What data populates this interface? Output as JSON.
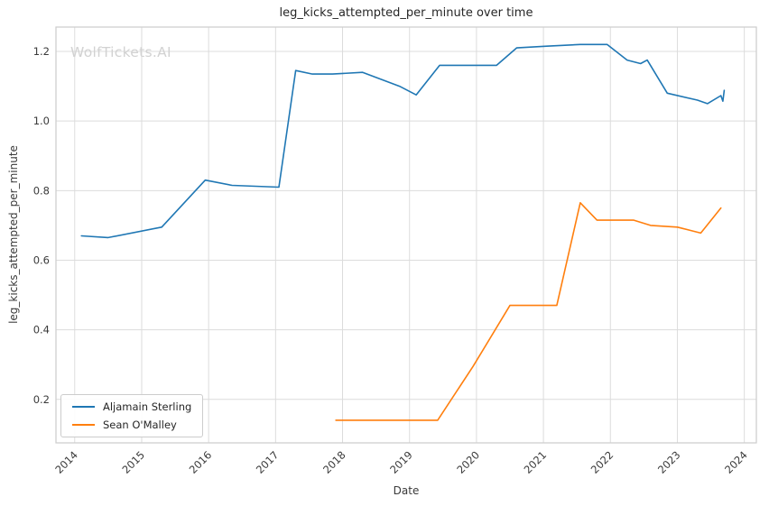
{
  "watermark": "WolfTickets.AI",
  "chart_data": {
    "type": "line",
    "title": "leg_kicks_attempted_per_minute over time",
    "xlabel": "Date",
    "ylabel": "leg_kicks_attempted_per_minute",
    "xlim": [
      2013.72,
      2024.18
    ],
    "ylim": [
      0.075,
      1.27
    ],
    "x_ticks": [
      2014,
      2015,
      2016,
      2017,
      2018,
      2019,
      2020,
      2021,
      2022,
      2023,
      2024
    ],
    "y_ticks": [
      0.2,
      0.4,
      0.6,
      0.8,
      1.0,
      1.2
    ],
    "grid": true,
    "grid_color": "#dcdcdc",
    "border_color": "#cccccc",
    "legend_position": "lower left",
    "series": [
      {
        "name": "Aljamain Sterling",
        "color": "#1f77b4",
        "points": [
          [
            2014.1,
            0.67
          ],
          [
            2014.5,
            0.665
          ],
          [
            2015.3,
            0.695
          ],
          [
            2015.95,
            0.83
          ],
          [
            2016.35,
            0.815
          ],
          [
            2017.05,
            0.81
          ],
          [
            2017.3,
            1.145
          ],
          [
            2017.55,
            1.135
          ],
          [
            2017.85,
            1.135
          ],
          [
            2018.3,
            1.14
          ],
          [
            2018.85,
            1.1
          ],
          [
            2019.1,
            1.075
          ],
          [
            2019.45,
            1.16
          ],
          [
            2019.95,
            1.16
          ],
          [
            2020.3,
            1.16
          ],
          [
            2020.6,
            1.21
          ],
          [
            2021.05,
            1.215
          ],
          [
            2021.55,
            1.22
          ],
          [
            2021.95,
            1.22
          ],
          [
            2022.25,
            1.175
          ],
          [
            2022.45,
            1.165
          ],
          [
            2022.55,
            1.175
          ],
          [
            2022.85,
            1.08
          ],
          [
            2023.3,
            1.06
          ],
          [
            2023.45,
            1.05
          ],
          [
            2023.65,
            1.073
          ],
          [
            2023.68,
            1.057
          ],
          [
            2023.7,
            1.088
          ]
        ]
      },
      {
        "name": "Sean O'Malley",
        "color": "#ff7f0e",
        "points": [
          [
            2017.9,
            0.14
          ],
          [
            2018.35,
            0.14
          ],
          [
            2018.85,
            0.14
          ],
          [
            2019.15,
            0.14
          ],
          [
            2019.42,
            0.14
          ],
          [
            2019.95,
            0.295
          ],
          [
            2020.5,
            0.47
          ],
          [
            2020.8,
            0.47
          ],
          [
            2021.2,
            0.47
          ],
          [
            2021.55,
            0.765
          ],
          [
            2021.8,
            0.715
          ],
          [
            2022.1,
            0.715
          ],
          [
            2022.35,
            0.715
          ],
          [
            2022.6,
            0.7
          ],
          [
            2023.0,
            0.695
          ],
          [
            2023.35,
            0.678
          ],
          [
            2023.65,
            0.75
          ]
        ]
      }
    ]
  }
}
